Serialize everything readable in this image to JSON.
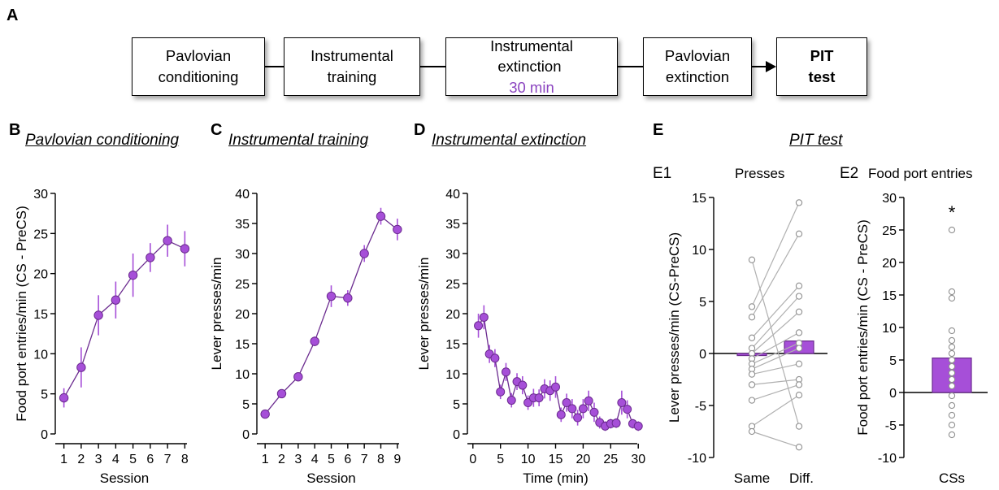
{
  "panel_a": {
    "label": "A",
    "boxes": [
      {
        "lines": [
          "Pavlovian",
          "conditioning"
        ]
      },
      {
        "lines": [
          "Instrumental",
          "training"
        ]
      },
      {
        "line1": "Instrumental",
        "line2_prefix": "extinction ",
        "line2_highlight": "30 min"
      },
      {
        "lines": [
          "Pavlovian",
          "extinction"
        ]
      },
      {
        "lines": [
          "PIT",
          "test"
        ]
      }
    ]
  },
  "panel_labels": {
    "b": "B",
    "c": "C",
    "d": "D",
    "e": "E",
    "e1": "E1",
    "e2": "E2"
  },
  "titles": {
    "b": "Pavlovian conditioning",
    "c": "Instrumental training",
    "d": "Instrumental extinction",
    "e": "PIT test",
    "e1_sub": "Presses",
    "e2_sub": "Food port entries"
  },
  "colors": {
    "series": "#a64fd8",
    "series_dark": "#6b2b8f",
    "box_fill": "#a64fd8",
    "individual": "#b0b0b0",
    "axis": "#000000"
  },
  "chart_data": [
    {
      "id": "B",
      "type": "line",
      "title": "Pavlovian conditioning",
      "xlabel": "Session",
      "ylabel": "Food port entries/min (CS - PreCS)",
      "x": [
        1,
        2,
        3,
        4,
        5,
        6,
        7,
        8
      ],
      "y": [
        4.5,
        8.3,
        14.8,
        16.7,
        19.8,
        22.0,
        24.1,
        23.1
      ],
      "err": [
        1.2,
        2.5,
        2.5,
        2.3,
        2.7,
        1.8,
        2.0,
        2.2
      ],
      "xticks": [
        "1",
        "2",
        "3",
        "4",
        "5",
        "6",
        "7",
        "8"
      ],
      "xlim": [
        0.5,
        8.5
      ],
      "yticks": [
        "0",
        "5",
        "10",
        "15",
        "20",
        "25",
        "30"
      ],
      "ylim": [
        0,
        30
      ]
    },
    {
      "id": "C",
      "type": "line",
      "title": "Instrumental training",
      "xlabel": "Session",
      "ylabel": "Lever presses/min",
      "x": [
        1,
        2,
        3,
        4,
        5,
        6,
        7,
        8,
        9
      ],
      "y": [
        3.3,
        6.7,
        9.5,
        15.4,
        22.9,
        22.6,
        30.0,
        36.2,
        34.0
      ],
      "err": [
        0.4,
        0.5,
        0.6,
        0.8,
        1.8,
        1.3,
        1.4,
        1.4,
        1.8
      ],
      "xticks": [
        "1",
        "2",
        "3",
        "4",
        "5",
        "6",
        "7",
        "8",
        "9"
      ],
      "xlim": [
        0.5,
        9.5
      ],
      "yticks": [
        "0",
        "5",
        "10",
        "15",
        "20",
        "25",
        "30",
        "35",
        "40"
      ],
      "ylim": [
        0,
        40
      ]
    },
    {
      "id": "D",
      "type": "line",
      "title": "Instrumental extinction",
      "xlabel": "Time (min)",
      "ylabel": "Lever presses/min",
      "x": [
        1,
        2,
        3,
        4,
        5,
        6,
        7,
        8,
        9,
        10,
        11,
        12,
        13,
        14,
        15,
        16,
        17,
        18,
        19,
        20,
        21,
        22,
        23,
        24,
        25,
        26,
        27,
        28,
        29,
        30
      ],
      "y": [
        18.0,
        19.4,
        13.3,
        12.6,
        7.0,
        10.3,
        5.6,
        8.7,
        8.1,
        5.2,
        6.0,
        6.0,
        7.5,
        7.2,
        7.8,
        3.2,
        5.2,
        4.2,
        2.7,
        4.2,
        5.5,
        3.6,
        1.9,
        1.3,
        1.7,
        1.8,
        5.2,
        4.1,
        1.7,
        1.3
      ],
      "err": [
        2.0,
        2.0,
        1.5,
        1.5,
        1.2,
        1.5,
        1.2,
        1.4,
        1.5,
        1.2,
        1.5,
        1.4,
        1.6,
        1.7,
        1.8,
        1.2,
        1.5,
        1.6,
        1.3,
        1.6,
        1.7,
        1.6,
        1.0,
        0.8,
        0.8,
        0.8,
        2.0,
        1.5,
        0.8,
        0.8
      ],
      "xticks": [
        "0",
        "5",
        "10",
        "15",
        "20",
        "25",
        "30"
      ],
      "xlim": [
        -1,
        31
      ],
      "yticks": [
        "0",
        "5",
        "10",
        "15",
        "20",
        "25",
        "30",
        "35",
        "40"
      ],
      "ylim": [
        0,
        40
      ]
    },
    {
      "id": "E1",
      "type": "bar",
      "title": "Presses",
      "ylabel": "Lever presses/min (CS-PreCS)",
      "categories": [
        "Same",
        "Diff."
      ],
      "values": [
        -0.2,
        1.2
      ],
      "ylim": [
        -10,
        15
      ],
      "yticks": [
        "-10",
        "-5",
        "0",
        "5",
        "10",
        "15"
      ],
      "paired_points": [
        [
          9.0,
          -7.0
        ],
        [
          4.5,
          14.5
        ],
        [
          3.5,
          11.5
        ],
        [
          1.5,
          6.5
        ],
        [
          0.5,
          5.5
        ],
        [
          0.0,
          4.0
        ],
        [
          -0.5,
          2.0
        ],
        [
          -1.0,
          1.0
        ],
        [
          -1.5,
          0.5
        ],
        [
          -2.0,
          -1.0
        ],
        [
          -3.0,
          -2.5
        ],
        [
          -4.5,
          -3.0
        ],
        [
          -7.0,
          -4.0
        ],
        [
          -7.5,
          -9.0
        ]
      ]
    },
    {
      "id": "E2",
      "type": "bar",
      "title": "Food port entries",
      "xlabel": "CSs",
      "ylabel": "Food port entries/min (CS - PreCS)",
      "categories": [
        "CSs"
      ],
      "values": [
        5.3
      ],
      "annotation": "*",
      "ylim": [
        -10,
        30
      ],
      "yticks": [
        "-10",
        "-5",
        "0",
        "5",
        "10",
        "15",
        "20",
        "25",
        "30"
      ],
      "points": [
        25.0,
        15.5,
        14.5,
        9.5,
        8.0,
        7.0,
        6.0,
        5.0,
        4.0,
        3.0,
        2.0,
        1.0,
        -0.5,
        -2.0,
        -3.5,
        -5.0,
        -6.5
      ]
    }
  ]
}
